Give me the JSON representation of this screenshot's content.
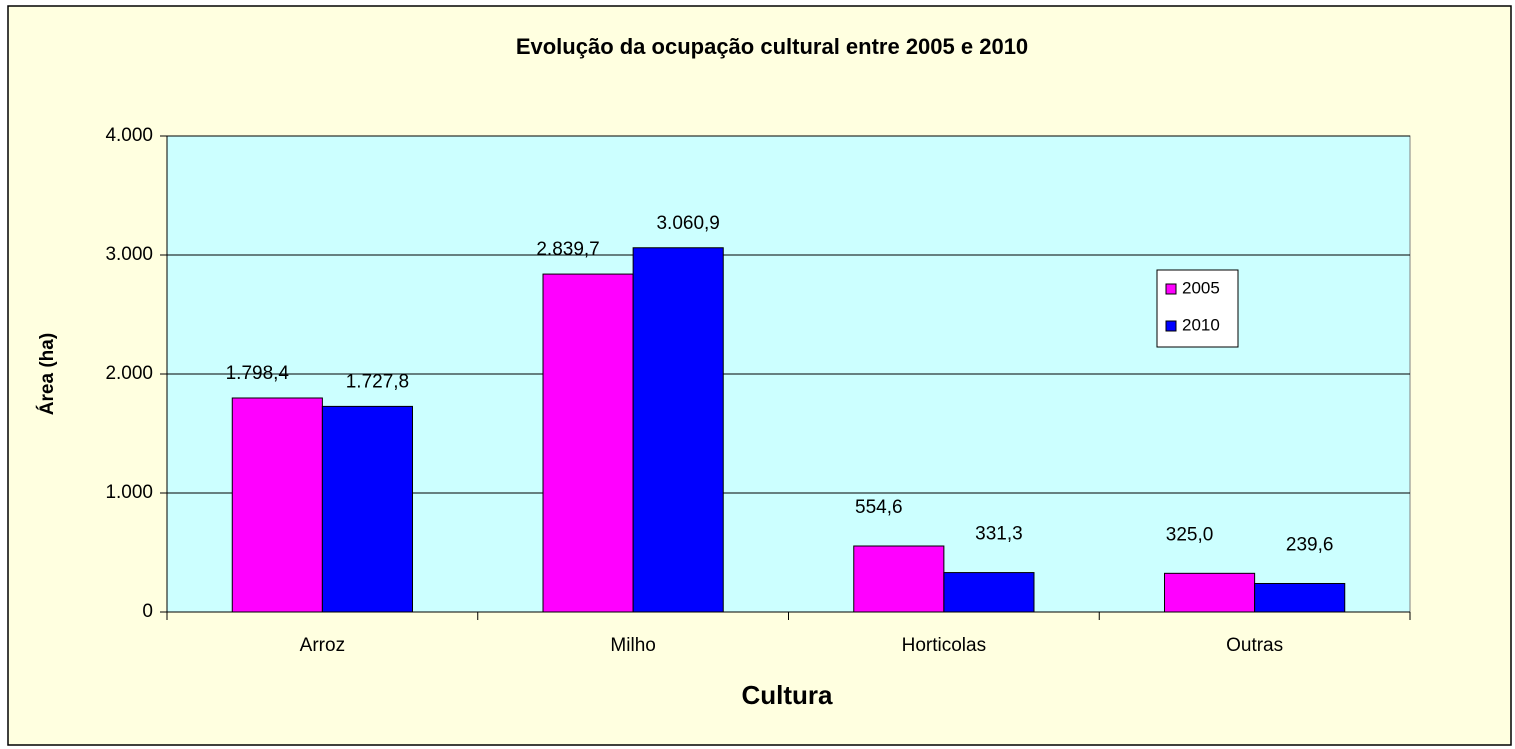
{
  "chart_data": {
    "type": "bar",
    "title": "Evolução da ocupação cultural entre 2005 e 2010",
    "x_label": "Cultura",
    "y_label": "Área (ha)",
    "categories": [
      "Arroz",
      "Milho",
      "Horticolas",
      "Outras"
    ],
    "series": [
      {
        "name": "2005",
        "color": "#ff00ff",
        "values": [
          1798.4,
          2839.7,
          554.6,
          325.0
        ],
        "value_labels": [
          "1.798,4",
          "2.839,7",
          "554,6",
          "325,0"
        ]
      },
      {
        "name": "2010",
        "color": "#0000ff",
        "values": [
          1727.8,
          3060.9,
          331.3,
          239.6
        ],
        "value_labels": [
          "1.727,8",
          "3.060,9",
          "331,3",
          "239,6"
        ]
      }
    ],
    "ylim": [
      0,
      4000
    ],
    "yticks": [
      {
        "value": 0,
        "label": "0"
      },
      {
        "value": 1000,
        "label": "1.000"
      },
      {
        "value": 2000,
        "label": "2.000"
      },
      {
        "value": 3000,
        "label": "3.000"
      },
      {
        "value": 4000,
        "label": "4.000"
      }
    ],
    "grid": true,
    "legend": "right"
  }
}
